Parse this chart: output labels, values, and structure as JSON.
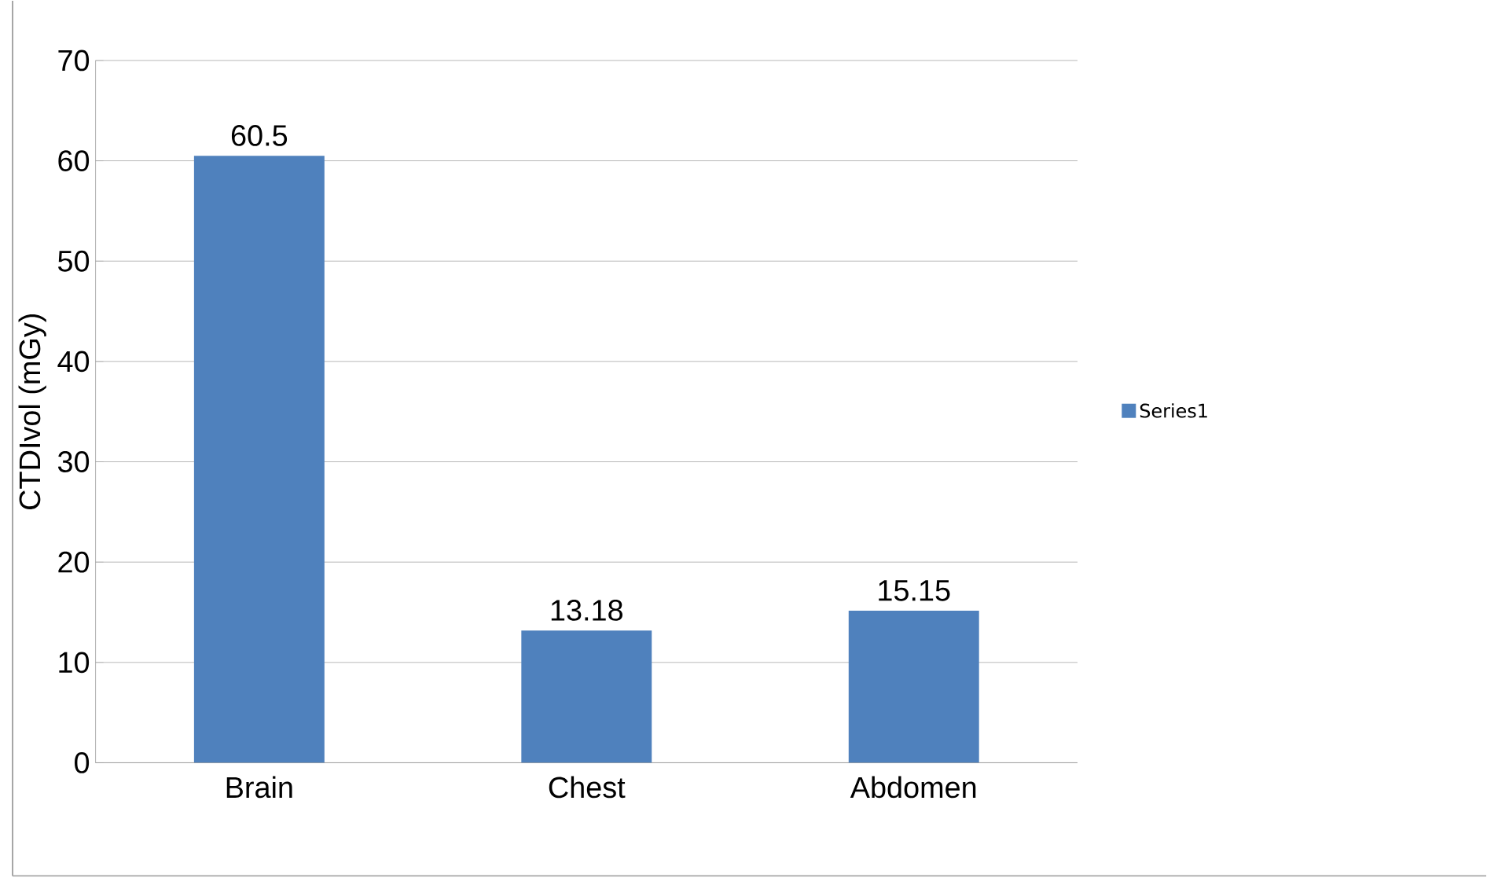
{
  "chart_data": {
    "type": "bar",
    "ylabel": "CTDIvol (mGy)",
    "categories": [
      "Brain",
      "Chest",
      "Abdomen"
    ],
    "series": [
      {
        "name": "Series1",
        "color": "#4f81bd",
        "values": [
          60.5,
          13.18,
          15.15
        ]
      }
    ],
    "ylim": [
      0,
      70
    ],
    "yticks": [
      0,
      10,
      20,
      30,
      40,
      50,
      60,
      70
    ],
    "grid": "y",
    "legend": "right",
    "data_labels": true
  }
}
